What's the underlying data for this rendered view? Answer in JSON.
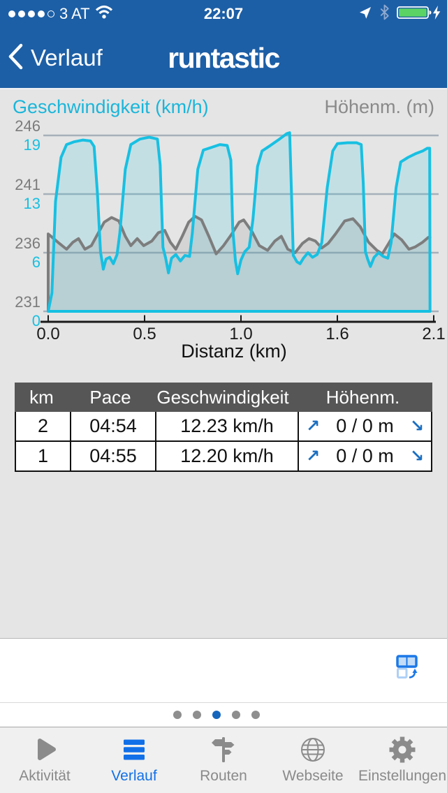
{
  "status_bar": {
    "carrier": "3 AT",
    "time": "22:07",
    "signal_dots_filled": 4,
    "signal_dots_total": 5,
    "battery_color": "#5bd465"
  },
  "nav_bar": {
    "back_label": "Verlauf",
    "logo": "runtastic",
    "bg_color": "#1d5fa6"
  },
  "chart": {
    "left_title": "Geschwindigkeit (km/h)",
    "right_title": "Höhenm. (m)",
    "xlabel": "Distanz (km)",
    "y_left_gray": [
      "246",
      "241",
      "236",
      "231"
    ],
    "y_left_cyan": [
      "19",
      "13",
      "6",
      "0"
    ],
    "x_ticks": [
      "0.0",
      "0.5",
      "1.0",
      "1.6",
      "2.1"
    ],
    "colors": {
      "speed_line": "#17c0e2",
      "speed_fill": "rgba(23,192,226,0.16)",
      "elevation_line": "#7d7d7d",
      "elevation_fill": "rgba(125,125,125,0.16)",
      "grid": "#a6b0ba",
      "axis": "#1a1a1a",
      "title_left": "#1ab6da",
      "title_right": "#8a8a8a"
    }
  },
  "chart_data": {
    "type": "line",
    "title": "",
    "xlabel": "Distanz (km)",
    "x_range": [
      0,
      2.1
    ],
    "speed_axis": {
      "min": 0,
      "max": 19.2,
      "tick_labels": [
        19,
        13,
        6,
        0
      ]
    },
    "elevation_axis": {
      "min": 231,
      "max": 246,
      "tick_labels": [
        246,
        241,
        236,
        231
      ]
    },
    "grid": true,
    "series": [
      {
        "name": "Geschwindigkeit (km/h)",
        "axis": "speed",
        "color": "#17c0e2",
        "points": [
          [
            0.0,
            0
          ],
          [
            0.02,
            2
          ],
          [
            0.04,
            12
          ],
          [
            0.07,
            16.8
          ],
          [
            0.1,
            18.2
          ],
          [
            0.14,
            18.5
          ],
          [
            0.19,
            18.7
          ],
          [
            0.23,
            18.6
          ],
          [
            0.25,
            18.0
          ],
          [
            0.268,
            13
          ],
          [
            0.285,
            6.5
          ],
          [
            0.3,
            4.6
          ],
          [
            0.315,
            5.7
          ],
          [
            0.335,
            5.9
          ],
          [
            0.355,
            5.2
          ],
          [
            0.375,
            6.2
          ],
          [
            0.39,
            8.5
          ],
          [
            0.42,
            15.5
          ],
          [
            0.45,
            18.2
          ],
          [
            0.5,
            18.8
          ],
          [
            0.55,
            19.0
          ],
          [
            0.595,
            18.8
          ],
          [
            0.61,
            16
          ],
          [
            0.625,
            7
          ],
          [
            0.64,
            5.8
          ],
          [
            0.655,
            4.2
          ],
          [
            0.672,
            5.8
          ],
          [
            0.695,
            6.2
          ],
          [
            0.72,
            5.5
          ],
          [
            0.745,
            6.1
          ],
          [
            0.77,
            6.0
          ],
          [
            0.785,
            8.5
          ],
          [
            0.815,
            15.5
          ],
          [
            0.845,
            17.6
          ],
          [
            0.89,
            17.9
          ],
          [
            0.935,
            18.2
          ],
          [
            0.975,
            18.1
          ],
          [
            0.995,
            16.5
          ],
          [
            1.005,
            9
          ],
          [
            1.02,
            5.5
          ],
          [
            1.032,
            4.1
          ],
          [
            1.05,
            5.6
          ],
          [
            1.07,
            6.5
          ],
          [
            1.095,
            7.0
          ],
          [
            1.115,
            10
          ],
          [
            1.14,
            15.8
          ],
          [
            1.165,
            17.5
          ],
          [
            1.21,
            18.1
          ],
          [
            1.26,
            18.8
          ],
          [
            1.3,
            19.4
          ],
          [
            1.315,
            19.5
          ],
          [
            1.325,
            13
          ],
          [
            1.335,
            6.1
          ],
          [
            1.355,
            5.4
          ],
          [
            1.372,
            5.2
          ],
          [
            1.39,
            5.8
          ],
          [
            1.415,
            6.4
          ],
          [
            1.44,
            5.9
          ],
          [
            1.465,
            6.2
          ],
          [
            1.49,
            7.5
          ],
          [
            1.52,
            13.5
          ],
          [
            1.55,
            17.5
          ],
          [
            1.575,
            18.3
          ],
          [
            1.63,
            18.4
          ],
          [
            1.68,
            18.4
          ],
          [
            1.705,
            18.2
          ],
          [
            1.716,
            14
          ],
          [
            1.728,
            6.5
          ],
          [
            1.74,
            5.7
          ],
          [
            1.755,
            4.9
          ],
          [
            1.775,
            5.9
          ],
          [
            1.8,
            6.4
          ],
          [
            1.825,
            6.0
          ],
          [
            1.85,
            5.8
          ],
          [
            1.868,
            7.5
          ],
          [
            1.895,
            13.5
          ],
          [
            1.92,
            16.3
          ],
          [
            1.96,
            16.8
          ],
          [
            2.0,
            17.2
          ],
          [
            2.04,
            17.5
          ],
          [
            2.065,
            17.8
          ],
          [
            2.078,
            17.8
          ],
          [
            2.08,
            0
          ]
        ]
      },
      {
        "name": "Höhenm. (m)",
        "axis": "elevation",
        "color": "#7d7d7d",
        "points": [
          [
            0.0,
            237.6
          ],
          [
            0.03,
            237.2
          ],
          [
            0.06,
            236.8
          ],
          [
            0.1,
            236.3
          ],
          [
            0.135,
            236.9
          ],
          [
            0.165,
            237.2
          ],
          [
            0.2,
            236.3
          ],
          [
            0.235,
            236.6
          ],
          [
            0.27,
            237.6
          ],
          [
            0.305,
            238.6
          ],
          [
            0.345,
            239.0
          ],
          [
            0.385,
            238.7
          ],
          [
            0.42,
            237.4
          ],
          [
            0.45,
            236.6
          ],
          [
            0.485,
            237.2
          ],
          [
            0.52,
            236.6
          ],
          [
            0.565,
            237.0
          ],
          [
            0.6,
            237.7
          ],
          [
            0.635,
            237.9
          ],
          [
            0.665,
            236.9
          ],
          [
            0.695,
            236.3
          ],
          [
            0.73,
            237.4
          ],
          [
            0.765,
            238.6
          ],
          [
            0.8,
            239.1
          ],
          [
            0.835,
            238.8
          ],
          [
            0.875,
            237.4
          ],
          [
            0.915,
            235.9
          ],
          [
            0.955,
            236.6
          ],
          [
            1.0,
            237.6
          ],
          [
            1.04,
            238.6
          ],
          [
            1.065,
            238.8
          ],
          [
            1.11,
            237.8
          ],
          [
            1.15,
            236.6
          ],
          [
            1.195,
            236.2
          ],
          [
            1.235,
            237.0
          ],
          [
            1.27,
            237.4
          ],
          [
            1.305,
            236.3
          ],
          [
            1.345,
            236.0
          ],
          [
            1.385,
            236.8
          ],
          [
            1.42,
            237.2
          ],
          [
            1.455,
            237.0
          ],
          [
            1.49,
            236.4
          ],
          [
            1.525,
            236.8
          ],
          [
            1.565,
            237.6
          ],
          [
            1.615,
            238.7
          ],
          [
            1.66,
            238.9
          ],
          [
            1.7,
            238.2
          ],
          [
            1.745,
            236.9
          ],
          [
            1.79,
            236.2
          ],
          [
            1.82,
            235.9
          ],
          [
            1.855,
            236.8
          ],
          [
            1.885,
            237.6
          ],
          [
            1.925,
            237.1
          ],
          [
            1.965,
            236.3
          ],
          [
            2.0,
            236.5
          ],
          [
            2.04,
            236.9
          ],
          [
            2.07,
            237.3
          ],
          [
            2.085,
            237.4
          ]
        ]
      }
    ]
  },
  "table": {
    "headers": [
      "km",
      "Pace",
      "Geschwindigkeit",
      "Höhenm."
    ],
    "icons": {
      "gain": "↗",
      "loss": "↘"
    },
    "rows": [
      {
        "km": "2",
        "pace": "04:54",
        "speed": "12.23 km/h",
        "elev": "0 / 0 m"
      },
      {
        "km": "1",
        "pace": "04:55",
        "speed": "12.20 km/h",
        "elev": "0 / 0 m"
      }
    ]
  },
  "pager": {
    "count": 5,
    "active_index": 2,
    "active_color": "#1565bd",
    "inactive_color": "#8e8e8e"
  },
  "tab_bar": {
    "active_color": "#1170e8",
    "inactive_color": "#8b8b8b",
    "items": [
      {
        "label": "Aktivität",
        "icon": "play-icon",
        "active": false
      },
      {
        "label": "Verlauf",
        "icon": "list-icon",
        "active": true
      },
      {
        "label": "Routen",
        "icon": "signpost-icon",
        "active": false
      },
      {
        "label": "Webseite",
        "icon": "globe-icon",
        "active": false
      },
      {
        "label": "Einstellungen",
        "icon": "gear-icon",
        "active": false
      }
    ]
  }
}
